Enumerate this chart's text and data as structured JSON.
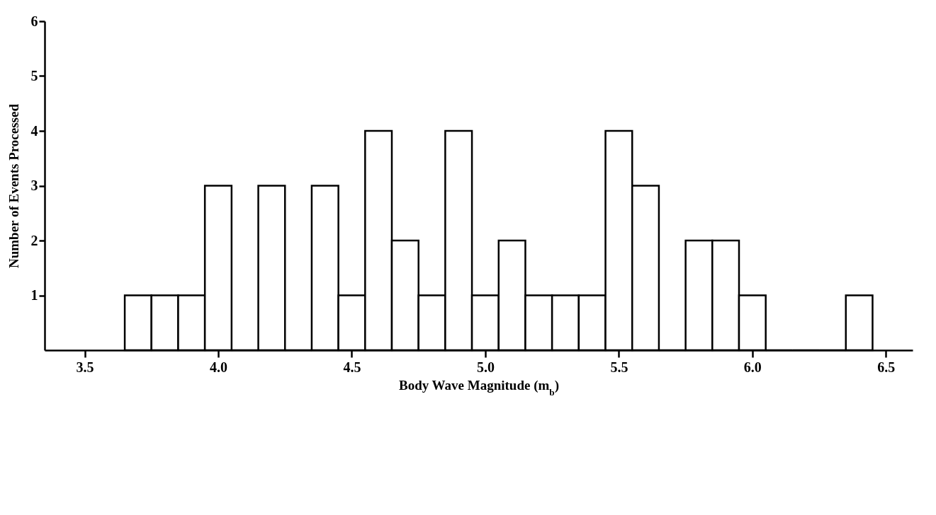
{
  "chart_data": {
    "type": "histogram",
    "xlabel": "Body Wave Magnitude (m$_{b}$)",
    "ylabel": "Number of Events Processed",
    "bins": [
      3.65,
      3.75,
      3.85,
      3.95,
      4.05,
      4.15,
      4.25,
      4.35,
      4.45,
      4.55,
      4.65,
      4.75,
      4.85,
      4.95,
      5.05,
      5.15,
      5.25,
      5.35,
      5.45,
      5.55,
      5.65,
      5.75,
      5.85,
      5.95,
      6.05,
      6.15,
      6.25,
      6.35,
      6.45
    ],
    "values": [
      1,
      1,
      1,
      3,
      0,
      3,
      0,
      3,
      1,
      4,
      2,
      1,
      4,
      1,
      2,
      1,
      1,
      1,
      4,
      3,
      0,
      2,
      2,
      1,
      0,
      0,
      0,
      1
    ],
    "color": "#ffffff",
    "xlim": [
      3.35,
      6.6
    ],
    "xticks": [
      3.5,
      {
        "value": 4,
        "label": "4.0"
      },
      4.5,
      {
        "value": 5,
        "label": "5.0"
      },
      5.5,
      {
        "value": 6,
        "label": "6.0"
      },
      6.5
    ],
    "ylim": [
      0,
      6
    ],
    "yticks": [
      1,
      2,
      3,
      4,
      5,
      6
    ],
    "grid": false
  }
}
